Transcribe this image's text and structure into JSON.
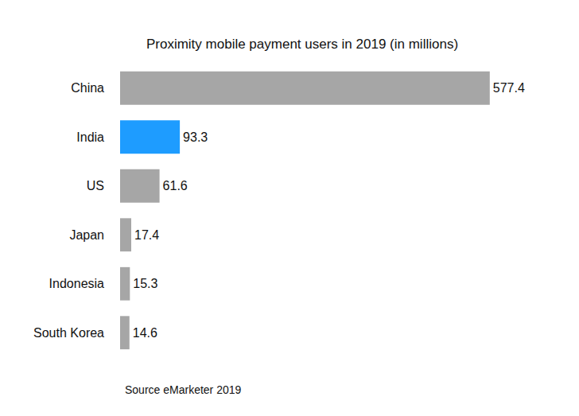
{
  "chart_data": {
    "type": "bar",
    "orientation": "horizontal",
    "title": "Proximity mobile payment users in 2019 (in millions)",
    "categories": [
      "China",
      "India",
      "US",
      "Japan",
      "Indonesia",
      "South Korea"
    ],
    "values": [
      577.4,
      93.3,
      61.6,
      17.4,
      15.3,
      14.6
    ],
    "colors": [
      "#a6a6a6",
      "#1e9cff",
      "#a6a6a6",
      "#a6a6a6",
      "#a6a6a6",
      "#a6a6a6"
    ],
    "xlim": [
      0,
      600
    ],
    "xticks": [
      0,
      600
    ],
    "grid": false,
    "data_labels": true,
    "tick_labels": "y",
    "annotation": "Source eMarketer 2019"
  }
}
